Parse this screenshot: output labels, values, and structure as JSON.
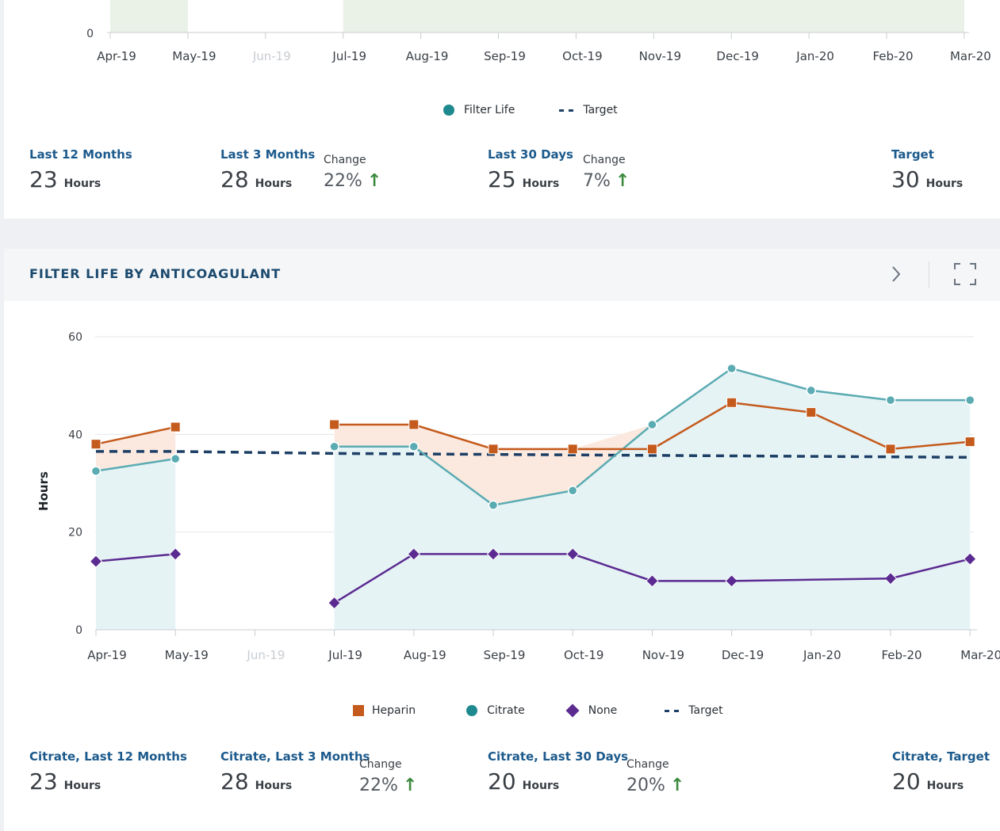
{
  "top_card": {
    "chart": {
      "y_tick": "0",
      "months": [
        "Apr-19",
        "May-19",
        "Jun-19",
        "Jul-19",
        "Aug-19",
        "Sep-19",
        "Oct-19",
        "Nov-19",
        "Dec-19",
        "Jan-20",
        "Feb-20",
        "Mar-20"
      ],
      "disabled_month": "Jun-19"
    },
    "legend": {
      "filter_life": "Filter Life",
      "target": "Target"
    },
    "stats": {
      "last12": {
        "label": "Last 12 Months",
        "value": "23",
        "unit": "Hours"
      },
      "last3": {
        "label": "Last 3 Months",
        "value": "28",
        "unit": "Hours"
      },
      "change3": {
        "label": "Change",
        "value": "22%"
      },
      "last30": {
        "label": "Last 30 Days",
        "value": "25",
        "unit": "Hours"
      },
      "change30": {
        "label": "Change",
        "value": "7%"
      },
      "target": {
        "label": "Target",
        "value": "30",
        "unit": "Hours"
      }
    }
  },
  "bottom_card": {
    "title": "FILTER LIFE BY ANTICOAGULANT",
    "icons": {
      "next": "chevron-right-icon",
      "expand": "expand-icon"
    },
    "legend": {
      "heparin": "Heparin",
      "citrate": "Citrate",
      "none": "None",
      "target": "Target"
    },
    "stats": {
      "last12": {
        "label": "Citrate, Last 12 Months",
        "value": "23",
        "unit": "Hours"
      },
      "last3": {
        "label": "Citrate, Last 3 Months",
        "value": "28",
        "unit": "Hours"
      },
      "change3": {
        "label": "Change",
        "value": "22%"
      },
      "last30": {
        "label": "Citrate, Last 30 Days",
        "value": "20",
        "unit": "Hours"
      },
      "change30": {
        "label": "Change",
        "value": "20%"
      },
      "target": {
        "label": "Citrate, Target",
        "value": "20",
        "unit": "Hours"
      }
    }
  },
  "colors": {
    "heparin": "#c45a1c",
    "citrate": "#5aabb2",
    "none": "#5b2b91",
    "target": "#1d3f66",
    "arrow_up": "#3b8a3e"
  },
  "chart_data": {
    "type": "line",
    "ylabel": "Hours",
    "ylim": [
      0,
      60
    ],
    "yticks": [
      0,
      20,
      40,
      60
    ],
    "categories": [
      "Apr-19",
      "May-19",
      "Jun-19",
      "Jul-19",
      "Aug-19",
      "Sep-19",
      "Oct-19",
      "Nov-19",
      "Dec-19",
      "Jan-20",
      "Feb-20",
      "Mar-20"
    ],
    "series": [
      {
        "name": "Heparin",
        "marker": "square",
        "values": [
          38,
          41.5,
          null,
          42,
          42,
          37,
          37,
          37,
          46.5,
          44.5,
          37,
          38.5
        ]
      },
      {
        "name": "Citrate",
        "marker": "circle",
        "values": [
          32.5,
          35,
          null,
          37.5,
          37.5,
          25.5,
          28.5,
          42,
          53.5,
          49,
          47,
          47
        ]
      },
      {
        "name": "None",
        "marker": "diamond",
        "values": [
          14,
          15.5,
          null,
          5.5,
          15.5,
          15.5,
          15.5,
          10,
          10,
          null,
          10.5,
          14.5
        ]
      },
      {
        "name": "Target",
        "style": "dashed",
        "values": [
          36.5,
          36.5,
          36.3,
          36.1,
          36,
          35.9,
          35.8,
          35.7,
          35.6,
          35.5,
          35.4,
          35.3
        ]
      }
    ],
    "legend": "bottom-center",
    "grid": true
  }
}
